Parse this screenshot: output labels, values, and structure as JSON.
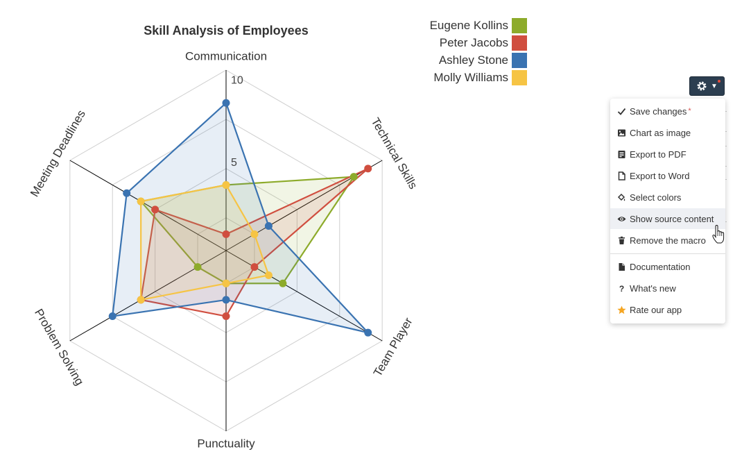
{
  "chart_data": {
    "type": "radar",
    "title": "Skill Analysis of Employees",
    "axes": [
      "Communication",
      "Technical Skills",
      "Team Player",
      "Punctuality",
      "Problem Solving",
      "Meeting Deadlines"
    ],
    "rlim": [
      0,
      11
    ],
    "rticks": [
      5,
      10
    ],
    "series": [
      {
        "name": "Eugene Kollins",
        "color": "#8dab2b",
        "values": [
          4,
          9,
          4,
          2,
          2,
          6
        ]
      },
      {
        "name": "Peter Jacobs",
        "color": "#d04e3f",
        "values": [
          1,
          10,
          2,
          4,
          6,
          5
        ]
      },
      {
        "name": "Ashley Stone",
        "color": "#3a73b1",
        "values": [
          9,
          3,
          10,
          3,
          8,
          7
        ]
      },
      {
        "name": "Molly Williams",
        "color": "#f6c444",
        "values": [
          4,
          2,
          3,
          2,
          6,
          6
        ]
      }
    ],
    "legend_position": "top-right"
  },
  "settings": {
    "button_icon": "gear-icon",
    "menu": {
      "save_changes": "Save changes",
      "save_marker": "*",
      "chart_as_image": "Chart as image",
      "export_pdf": "Export to PDF",
      "export_word": "Export to Word",
      "select_colors": "Select colors",
      "show_source": "Show source content",
      "remove_macro": "Remove the macro",
      "documentation": "Documentation",
      "whats_new": "What's new",
      "rate_app": "Rate our app"
    }
  }
}
